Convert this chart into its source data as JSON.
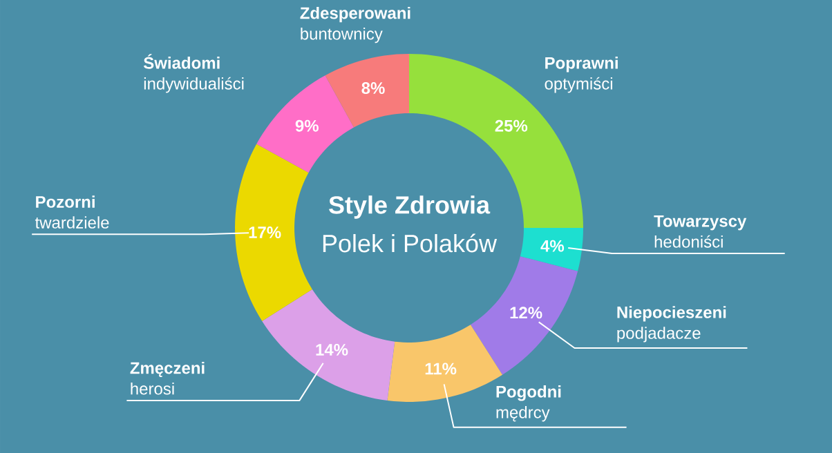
{
  "chart_data": {
    "type": "donut",
    "title": "Style Zdrowia",
    "subtitle": "Polek i Polaków",
    "categories": [
      "**Poprawni** optymiści",
      "**Towarzyscy** hedoniści",
      "**Niepocieszeni** podjadacze",
      "**Pogodni** mędrcy",
      "**Zmęczeni** herosi",
      "**Pozorni** twardziele",
      "**Świadomi** indywidualiści",
      "**Zdesperowani** buntownicy"
    ],
    "values": [
      25,
      4,
      12,
      11,
      14,
      17,
      9,
      8
    ],
    "value_labels": [
      "25%",
      "4%",
      "12%",
      "11%",
      "14%",
      "17%",
      "9%",
      "8%"
    ],
    "colors": [
      "#96e03c",
      "#1ddfd0",
      "#a07be8",
      "#f9c66a",
      "#dca0e8",
      "#ebd900",
      "#ff6ec7",
      "#f77b7b"
    ]
  }
}
